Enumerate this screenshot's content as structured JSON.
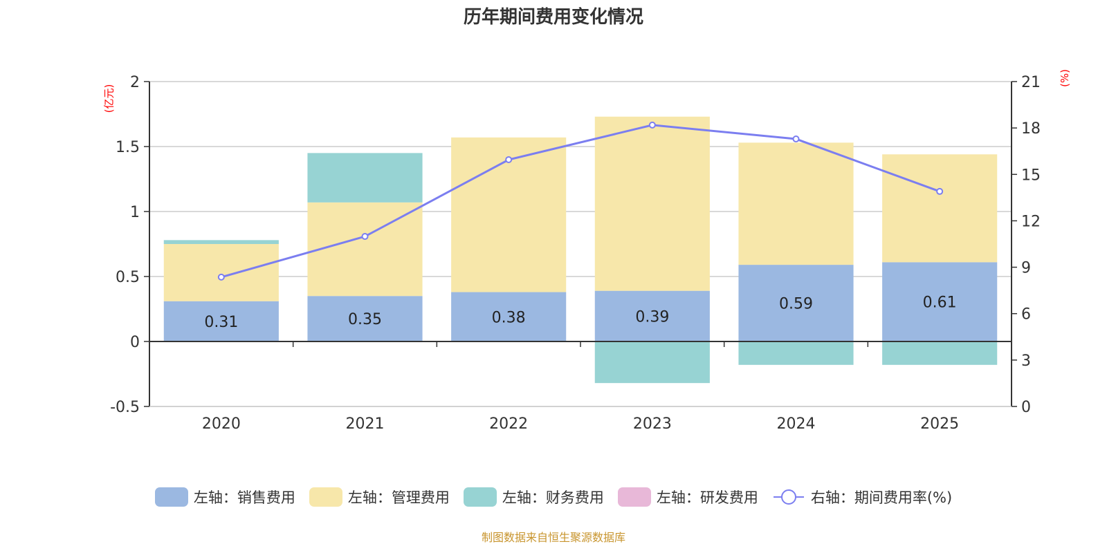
{
  "chart_data": {
    "type": "bar",
    "title": "历年期间费用变化情况",
    "categories": [
      "2020",
      "2021",
      "2022",
      "2023",
      "2024",
      "2025"
    ],
    "stacked": true,
    "left_axis": {
      "label": "(亿元)",
      "ylim": [
        -0.5,
        2
      ],
      "ticks": [
        "2",
        "1.5",
        "1",
        "0.5",
        "0",
        "-0.5"
      ],
      "tick_values": [
        2,
        1.5,
        1,
        0.5,
        0,
        -0.5
      ]
    },
    "right_axis": {
      "label": "(%)",
      "ylim": [
        0,
        21
      ],
      "ticks": [
        "21",
        "18",
        "15",
        "12",
        "9",
        "6",
        "3",
        "0"
      ],
      "tick_values": [
        21,
        18,
        15,
        12,
        9,
        6,
        3,
        0
      ]
    },
    "grid": true,
    "legend_position": "bottom",
    "series": [
      {
        "name": "左轴：销售费用",
        "type": "bar",
        "axis": "left",
        "color": "#9bb8e1",
        "values": [
          0.31,
          0.35,
          0.38,
          0.39,
          0.59,
          0.61
        ],
        "labels": [
          "0.31",
          "0.35",
          "0.38",
          "0.39",
          "0.59",
          "0.61"
        ]
      },
      {
        "name": "左轴：管理费用",
        "type": "bar",
        "axis": "left",
        "color": "#f7e7aa",
        "values": [
          0.44,
          0.72,
          1.19,
          1.34,
          0.94,
          0.83
        ]
      },
      {
        "name": "左轴：财务费用",
        "type": "bar",
        "axis": "left",
        "color": "#97d3d3",
        "values": [
          0.03,
          0.38,
          0.0,
          -0.32,
          -0.18,
          -0.18
        ]
      },
      {
        "name": "左轴：研发费用",
        "type": "bar",
        "axis": "left",
        "color": "#e8b8d8",
        "values": [
          0,
          0,
          0,
          0,
          0,
          0
        ]
      },
      {
        "name": "右轴：期间费用率(%)",
        "type": "line",
        "axis": "right",
        "color": "#7b7ef0",
        "values": [
          8.36,
          10.99,
          15.95,
          18.19,
          17.29,
          13.9
        ]
      }
    ]
  },
  "source_note": "制图数据来自恒生聚源数据库"
}
